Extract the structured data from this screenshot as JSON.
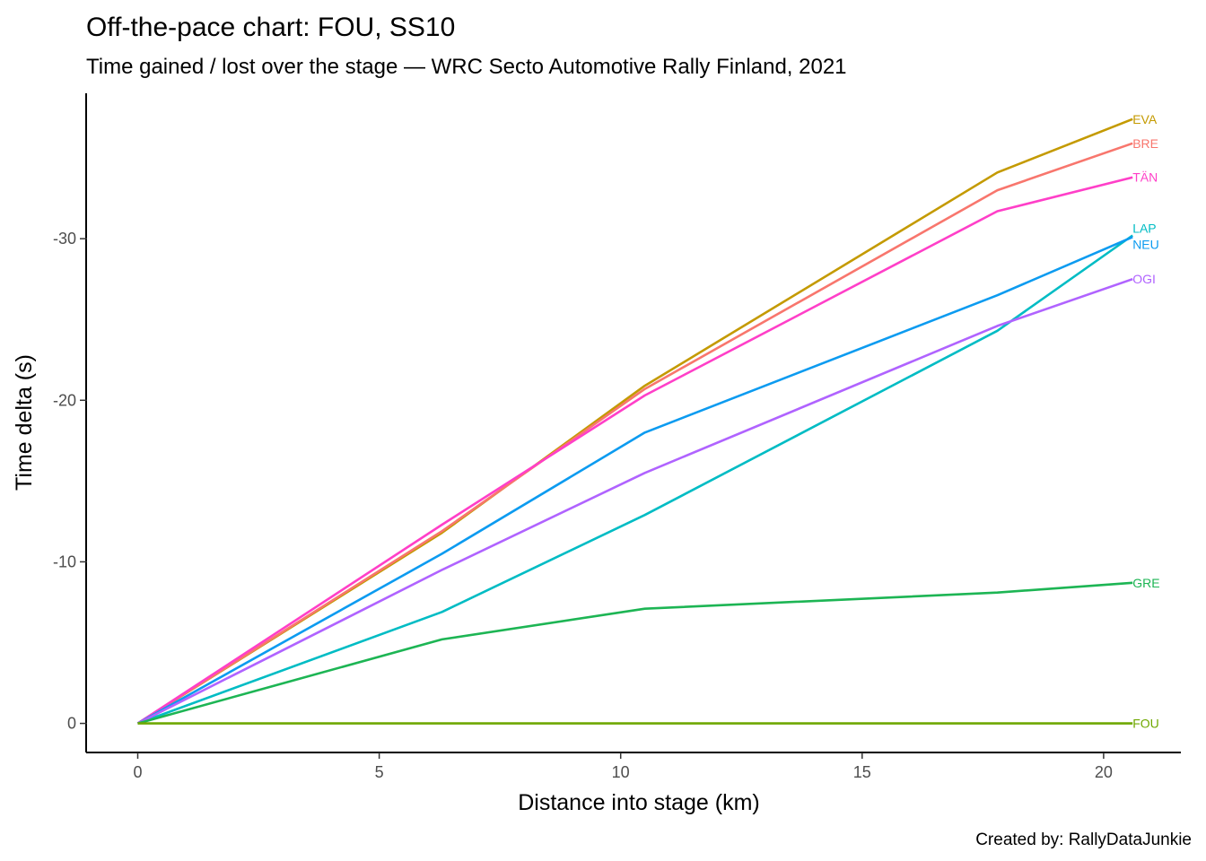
{
  "chart_data": {
    "type": "line",
    "title": "Off-the-pace chart: FOU, SS10",
    "subtitle": "Time gained / lost over the stage — WRC Secto Automotive Rally Finland, 2021",
    "xlabel": "Distance into stage (km)",
    "ylabel": "Time delta (s)",
    "caption": "Created by: RallyDataJunkie",
    "xlim": [
      -1.05,
      21.6
    ],
    "ylim": [
      1.8,
      -39.0
    ],
    "y_reversed": true,
    "x_ticks": [
      0,
      5,
      10,
      15,
      20
    ],
    "y_ticks": [
      0,
      -10,
      -20,
      -30
    ],
    "x_tick_labels": [
      "0",
      "5",
      "10",
      "15",
      "20"
    ],
    "y_tick_labels": [
      "0",
      "-10",
      "-20",
      "-30"
    ],
    "grid": false,
    "legend": "none",
    "x": [
      0,
      6.3,
      10.5,
      17.8,
      20.6
    ],
    "series": [
      {
        "name": "EVA",
        "color": "#C49A00",
        "values": [
          0,
          -11.8,
          -20.9,
          -34.1,
          -37.4
        ]
      },
      {
        "name": "BRE",
        "color": "#F8766D",
        "values": [
          0,
          -11.9,
          -20.7,
          -33.0,
          -35.9
        ]
      },
      {
        "name": "TÄN",
        "color": "#FF3FC8",
        "values": [
          0,
          -12.3,
          -20.3,
          -31.7,
          -33.8
        ]
      },
      {
        "name": "LAP",
        "color": "#00BCC4",
        "values": [
          0,
          -6.9,
          -12.9,
          -24.3,
          -30.2
        ]
      },
      {
        "name": "NEU",
        "color": "#0C9BF0",
        "values": [
          0,
          -10.5,
          -18.0,
          -26.5,
          -30.1
        ]
      },
      {
        "name": "OGI",
        "color": "#B063FF",
        "values": [
          0,
          -9.5,
          -15.5,
          -24.6,
          -27.5
        ]
      },
      {
        "name": "GRE",
        "color": "#1DB554",
        "values": [
          0,
          -5.2,
          -7.1,
          -8.1,
          -8.7
        ]
      },
      {
        "name": "FOU",
        "color": "#6FA800",
        "values": [
          0,
          0,
          0,
          0,
          0
        ]
      }
    ]
  }
}
